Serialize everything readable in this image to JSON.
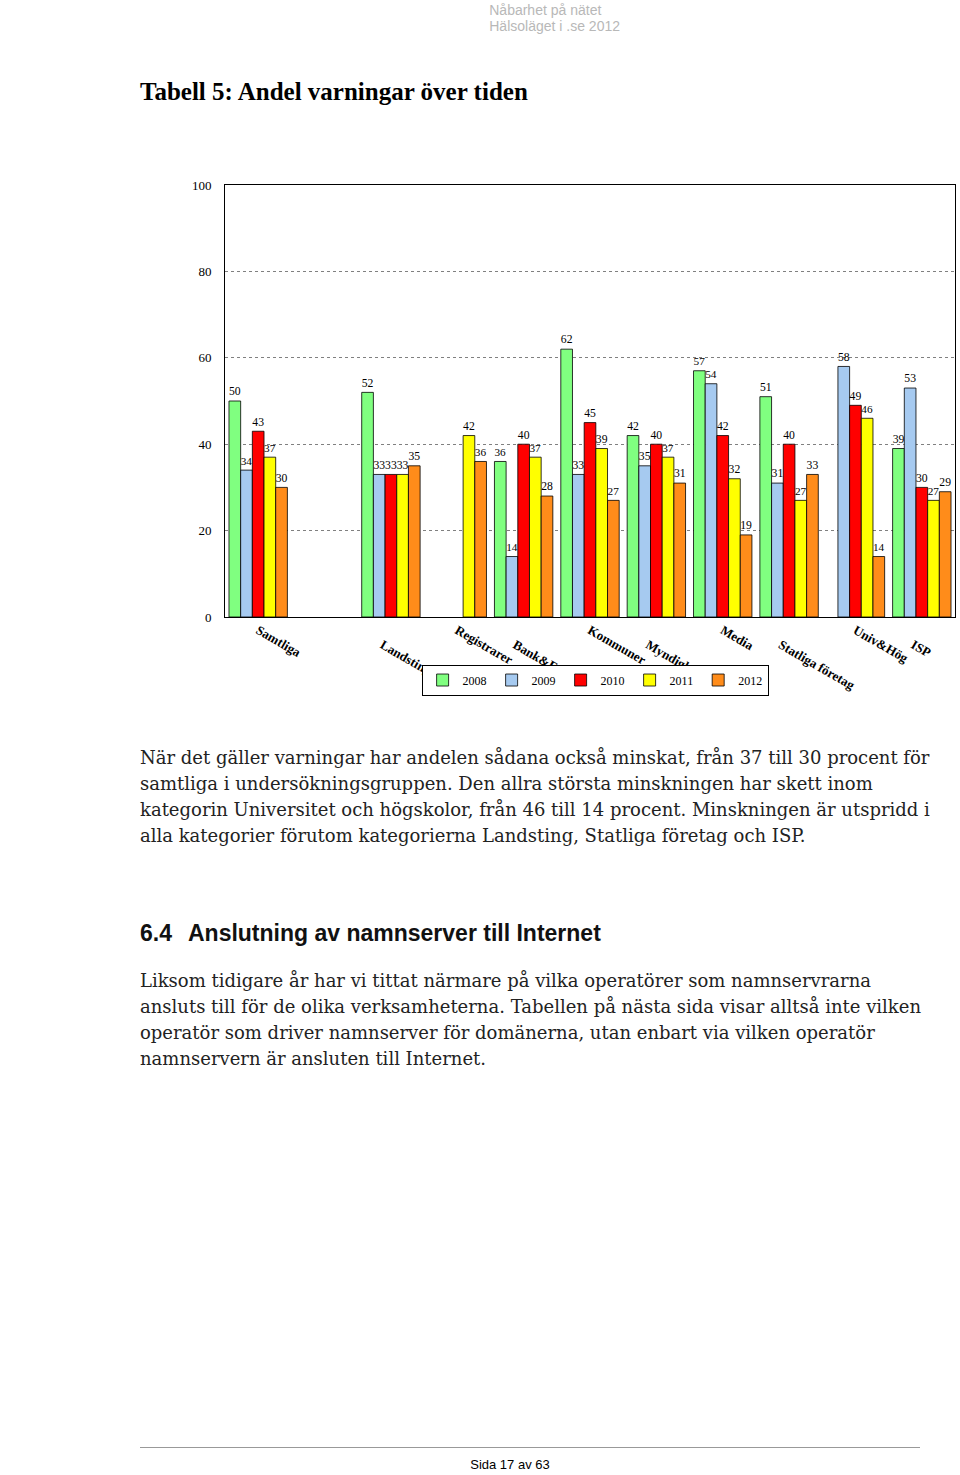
{
  "header": [
    "Nåbarhet på nätet",
    "Hälsoläget i .se 2012"
  ],
  "title": "Tabell 5: Andel varningar över tiden",
  "chart_data": {
    "type": "bar",
    "categories": [
      "Samtliga",
      null,
      "Landsting",
      "Registrarer",
      "Bank&Förs",
      "Kommuner",
      "Myndigheter",
      "Media",
      "Statliga företag",
      "Univ&Hög",
      "ISP"
    ],
    "series": [
      {
        "name": "2008",
        "color": "#80ff80",
        "values": [
          50,
          null,
          52,
          null,
          36,
          62,
          42,
          57,
          51,
          null,
          39
        ]
      },
      {
        "name": "2009",
        "color": "#a6caf0",
        "values": [
          34,
          null,
          33,
          null,
          14,
          33,
          35,
          54,
          31,
          58,
          53
        ]
      },
      {
        "name": "2010",
        "color": "#ff0000",
        "values": [
          43,
          null,
          33,
          null,
          40,
          45,
          40,
          42,
          40,
          49,
          30
        ]
      },
      {
        "name": "2011",
        "color": "#ffff00",
        "values": [
          37,
          null,
          33,
          42,
          37,
          39,
          37,
          32,
          27,
          46,
          27
        ]
      },
      {
        "name": "2012",
        "color": "#ff8c1a",
        "values": [
          30,
          null,
          35,
          36,
          28,
          27,
          31,
          19,
          33,
          14,
          29
        ]
      }
    ],
    "ylim": [
      0,
      100
    ],
    "yticks": [
      0,
      20,
      40,
      60,
      80,
      100
    ],
    "grid": true,
    "data_labels": true,
    "legend": "bottom"
  },
  "body": {
    "p1": "När det gäller varningar har andelen sådana också minskat, från 37 till 30 procent för samtliga i undersökningsgruppen. Den allra största minskningen har skett inom kategorin Universitet och högskolor, från 46 till 14 procent. Minskningen är utspridd i alla kategorier förutom kategorierna Landsting, Statliga företag och ISP.",
    "heading": {
      "number": "6.4",
      "text": "Anslutning av namnserver till Internet"
    },
    "p2": "Liksom tidigare år har vi tittat närmare på vilka operatörer som namnservrarna ansluts till för de olika verksamheterna. Tabellen på nästa sida visar alltså inte vilken operatör som driver namnserver för domänerna, utan enbart via vilken operatör namnservern är ansluten till Internet."
  },
  "footer": "Sida 17 av 63"
}
